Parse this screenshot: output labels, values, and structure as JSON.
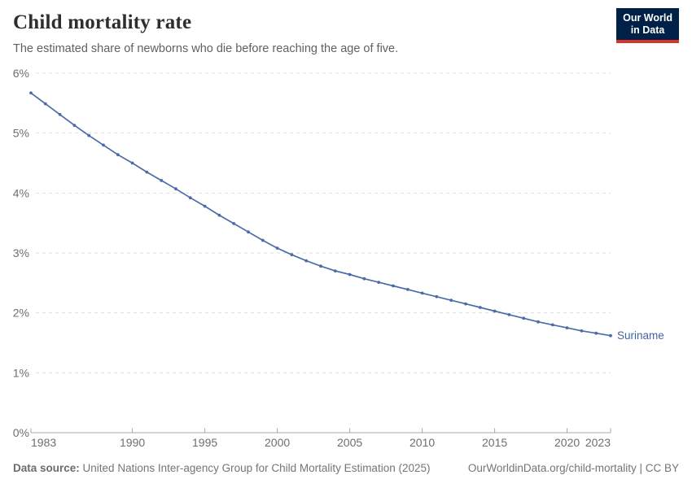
{
  "header": {
    "title": "Child mortality rate",
    "subtitle": "The estimated share of newborns who die before reaching the age of five.",
    "logo": {
      "line1": "Our World",
      "line2": "in Data"
    }
  },
  "chart_data": {
    "type": "line",
    "title": "Child mortality rate",
    "xlabel": "",
    "ylabel": "",
    "xlim": [
      1983,
      2023
    ],
    "ylim": [
      0,
      6
    ],
    "grid": "horizontal-dashed",
    "legend_position": "end-of-line-label",
    "xticks": [
      1983,
      1990,
      1995,
      2000,
      2005,
      2010,
      2015,
      2020,
      2023
    ],
    "yticks": [
      {
        "value": 0,
        "label": "0%"
      },
      {
        "value": 1,
        "label": "1%"
      },
      {
        "value": 2,
        "label": "2%"
      },
      {
        "value": 3,
        "label": "3%"
      },
      {
        "value": 4,
        "label": "4%"
      },
      {
        "value": 5,
        "label": "5%"
      },
      {
        "value": 6,
        "label": "6%"
      }
    ],
    "x": [
      1983,
      1984,
      1985,
      1986,
      1987,
      1988,
      1989,
      1990,
      1991,
      1992,
      1993,
      1994,
      1995,
      1996,
      1997,
      1998,
      1999,
      2000,
      2001,
      2002,
      2003,
      2004,
      2005,
      2006,
      2007,
      2008,
      2009,
      2010,
      2011,
      2012,
      2013,
      2014,
      2015,
      2016,
      2017,
      2018,
      2019,
      2020,
      2021,
      2022,
      2023
    ],
    "series": [
      {
        "name": "Suriname",
        "unit": "%",
        "color": "#4c6ba8",
        "values": [
          5.67,
          5.49,
          5.31,
          5.13,
          4.96,
          4.8,
          4.64,
          4.5,
          4.35,
          4.21,
          4.07,
          3.92,
          3.78,
          3.63,
          3.49,
          3.35,
          3.21,
          3.08,
          2.97,
          2.87,
          2.78,
          2.7,
          2.64,
          2.57,
          2.51,
          2.45,
          2.39,
          2.33,
          2.27,
          2.21,
          2.15,
          2.09,
          2.03,
          1.97,
          1.91,
          1.85,
          1.8,
          1.75,
          1.7,
          1.66,
          1.62
        ]
      }
    ],
    "end_label": "Suriname"
  },
  "footer": {
    "datasource_label": "Data source:",
    "datasource_text": "United Nations Inter-agency Group for Child Mortality Estimation (2025)",
    "url": "OurWorldinData.org/child-mortality",
    "separator": " | ",
    "license": "CC BY"
  },
  "colors": {
    "line": "#4c6ba8",
    "end_label": "#41669f",
    "gridline": "#dedede",
    "axis": "#a8a8a8",
    "tick_label": "#6e6e6e",
    "logo_bg": "#002147",
    "logo_accent": "#d8342c"
  }
}
